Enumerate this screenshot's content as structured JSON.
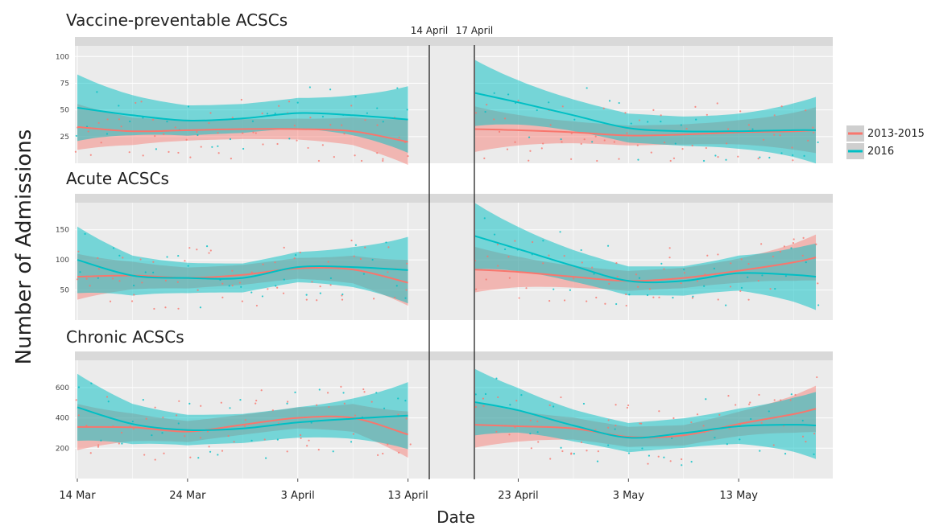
{
  "chart_data": {
    "type": "line",
    "xlabel": "Date",
    "ylabel": "Number of Admissions",
    "x_ticks": [
      "14 Mar",
      "24 Mar",
      "3 April",
      "13 April",
      "23 April",
      "3 May",
      "13 May"
    ],
    "event_lines": [
      "14 April",
      "17 April"
    ],
    "legend": {
      "position": "right",
      "entries": [
        {
          "name": "2013-2015",
          "color": "#f8766d"
        },
        {
          "name": "2016",
          "color": "#00bfc4"
        }
      ]
    },
    "colors": {
      "panel_bg": "#ebebeb",
      "strip_bg": "#d9d9d9",
      "grid": "#ffffff",
      "series_2013_2015": "#f8766d",
      "series_2016": "#00bfc4",
      "overlap_band": "#8c8c8c"
    },
    "panels": [
      {
        "title": "Vaccine-preventable ACSCs",
        "y_ticks": [
          25,
          50,
          75,
          100
        ],
        "ylim": [
          0,
          110
        ],
        "smooth_pre": {
          "2013-2015": [
            [
              0,
              34
            ],
            [
              5,
              30
            ],
            [
              10,
              31
            ],
            [
              15,
              32
            ],
            [
              20,
              32
            ],
            [
              25,
              30
            ],
            [
              30,
              20
            ]
          ],
          "2016": [
            [
              0,
              52
            ],
            [
              5,
              45
            ],
            [
              10,
              40
            ],
            [
              15,
              42
            ],
            [
              20,
              47
            ],
            [
              25,
              45
            ],
            [
              30,
              41
            ]
          ]
        },
        "smooth_post": {
          "2013-2015": [
            [
              36,
              32
            ],
            [
              40,
              31
            ],
            [
              45,
              29
            ],
            [
              50,
              26
            ],
            [
              55,
              27
            ],
            [
              60,
              29
            ],
            [
              65,
              30
            ],
            [
              67,
              31
            ]
          ],
          "2016": [
            [
              36,
              66
            ],
            [
              40,
              57
            ],
            [
              45,
              45
            ],
            [
              50,
              33
            ],
            [
              55,
              30
            ],
            [
              60,
              30
            ],
            [
              65,
              31
            ],
            [
              67,
              31
            ]
          ]
        }
      },
      {
        "title": "Acute ACSCs",
        "y_ticks": [
          50,
          100,
          150
        ],
        "ylim": [
          0,
          195
        ],
        "smooth_pre": {
          "2013-2015": [
            [
              0,
              72
            ],
            [
              5,
              74
            ],
            [
              10,
              70
            ],
            [
              15,
              75
            ],
            [
              20,
              86
            ],
            [
              25,
              84
            ],
            [
              30,
              62
            ]
          ],
          "2016": [
            [
              0,
              100
            ],
            [
              5,
              74
            ],
            [
              10,
              70
            ],
            [
              15,
              70
            ],
            [
              20,
              88
            ],
            [
              25,
              88
            ],
            [
              30,
              83
            ]
          ]
        },
        "smooth_post": {
          "2013-2015": [
            [
              36,
              84
            ],
            [
              40,
              80
            ],
            [
              45,
              72
            ],
            [
              50,
              65
            ],
            [
              55,
              70
            ],
            [
              60,
              82
            ],
            [
              65,
              96
            ],
            [
              67,
              104
            ]
          ],
          "2016": [
            [
              36,
              140
            ],
            [
              40,
              118
            ],
            [
              45,
              90
            ],
            [
              50,
              65
            ],
            [
              55,
              65
            ],
            [
              60,
              78
            ],
            [
              65,
              75
            ],
            [
              67,
              72
            ]
          ]
        }
      },
      {
        "title": "Chronic ACSCs",
        "y_ticks": [
          200,
          400,
          600
        ],
        "ylim": [
          0,
          780
        ],
        "smooth_pre": {
          "2013-2015": [
            [
              0,
              340
            ],
            [
              5,
              338
            ],
            [
              10,
              310
            ],
            [
              15,
              355
            ],
            [
              20,
              400
            ],
            [
              25,
              400
            ],
            [
              30,
              290
            ]
          ],
          "2016": [
            [
              0,
              470
            ],
            [
              5,
              360
            ],
            [
              10,
              320
            ],
            [
              15,
              330
            ],
            [
              20,
              370
            ],
            [
              25,
              395
            ],
            [
              30,
              415
            ]
          ]
        },
        "smooth_post": {
          "2013-2015": [
            [
              36,
              355
            ],
            [
              40,
              345
            ],
            [
              45,
              330
            ],
            [
              50,
              275
            ],
            [
              55,
              285
            ],
            [
              60,
              360
            ],
            [
              65,
              425
            ],
            [
              67,
              460
            ]
          ],
          "2016": [
            [
              36,
              505
            ],
            [
              40,
              450
            ],
            [
              45,
              350
            ],
            [
              50,
              270
            ],
            [
              55,
              300
            ],
            [
              60,
              345
            ],
            [
              65,
              355
            ],
            [
              67,
              350
            ]
          ]
        }
      }
    ]
  }
}
